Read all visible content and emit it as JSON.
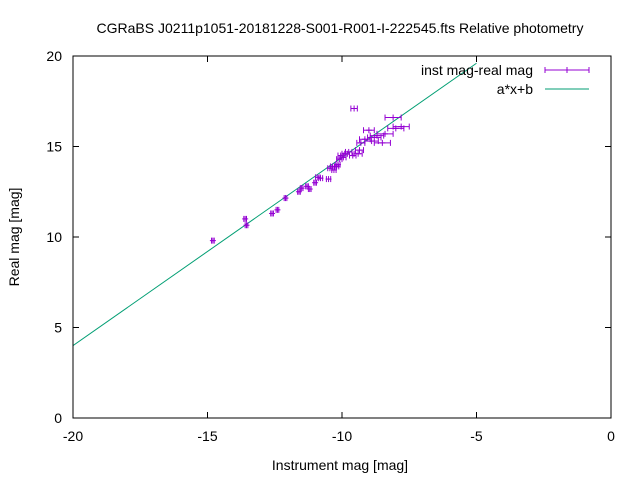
{
  "chart_data": {
    "type": "scatter",
    "title": "CGRaBS J0211p1051-20181228-S001-R001-I-222545.fts Relative photometry",
    "xlabel": "Instrument mag [mag]",
    "ylabel": "Real mag [mag]",
    "xlim": [
      -20,
      0
    ],
    "ylim": [
      0,
      20
    ],
    "xticks": [
      -20,
      -15,
      -10,
      -5,
      0
    ],
    "yticks": [
      0,
      5,
      10,
      15,
      20
    ],
    "grid": false,
    "legend_position": "top-right",
    "series": [
      {
        "name": "inst mag-real mag",
        "kind": "points-with-xerror",
        "color": "#9400d3",
        "points": [
          {
            "x": -14.8,
            "y": 9.8,
            "xerr": 0.05
          },
          {
            "x": -13.6,
            "y": 11.0,
            "xerr": 0.05
          },
          {
            "x": -13.55,
            "y": 10.65,
            "xerr": 0.05
          },
          {
            "x": -12.6,
            "y": 11.3,
            "xerr": 0.05
          },
          {
            "x": -12.4,
            "y": 11.5,
            "xerr": 0.05
          },
          {
            "x": -12.1,
            "y": 12.15,
            "xerr": 0.05
          },
          {
            "x": -11.6,
            "y": 12.5,
            "xerr": 0.05
          },
          {
            "x": -11.5,
            "y": 12.7,
            "xerr": 0.05
          },
          {
            "x": -11.3,
            "y": 12.8,
            "xerr": 0.05
          },
          {
            "x": -11.2,
            "y": 12.65,
            "xerr": 0.05
          },
          {
            "x": -11.0,
            "y": 13.0,
            "xerr": 0.05
          },
          {
            "x": -10.9,
            "y": 13.3,
            "xerr": 0.08
          },
          {
            "x": -10.8,
            "y": 13.25,
            "xerr": 0.08
          },
          {
            "x": -10.5,
            "y": 13.2,
            "xerr": 0.08
          },
          {
            "x": -10.45,
            "y": 13.8,
            "xerr": 0.08
          },
          {
            "x": -10.35,
            "y": 13.9,
            "xerr": 0.08
          },
          {
            "x": -10.3,
            "y": 13.7,
            "xerr": 0.08
          },
          {
            "x": -10.2,
            "y": 13.9,
            "xerr": 0.08
          },
          {
            "x": -10.15,
            "y": 14.0,
            "xerr": 0.08
          },
          {
            "x": -10.1,
            "y": 14.3,
            "xerr": 0.1
          },
          {
            "x": -10.05,
            "y": 14.5,
            "xerr": 0.1
          },
          {
            "x": -9.95,
            "y": 14.4,
            "xerr": 0.1
          },
          {
            "x": -9.9,
            "y": 14.6,
            "xerr": 0.1
          },
          {
            "x": -9.75,
            "y": 14.7,
            "xerr": 0.12
          },
          {
            "x": -9.6,
            "y": 14.5,
            "xerr": 0.12
          },
          {
            "x": -9.55,
            "y": 17.1,
            "xerr": 0.12
          },
          {
            "x": -9.4,
            "y": 14.6,
            "xerr": 0.15
          },
          {
            "x": -9.35,
            "y": 14.8,
            "xerr": 0.15
          },
          {
            "x": -9.3,
            "y": 15.2,
            "xerr": 0.15
          },
          {
            "x": -9.15,
            "y": 15.4,
            "xerr": 0.2
          },
          {
            "x": -9.0,
            "y": 15.9,
            "xerr": 0.2
          },
          {
            "x": -8.9,
            "y": 15.3,
            "xerr": 0.25
          },
          {
            "x": -8.8,
            "y": 15.5,
            "xerr": 0.25
          },
          {
            "x": -8.7,
            "y": 15.6,
            "xerr": 0.25
          },
          {
            "x": -8.5,
            "y": 15.2,
            "xerr": 0.3
          },
          {
            "x": -8.4,
            "y": 15.7,
            "xerr": 0.3
          },
          {
            "x": -8.1,
            "y": 16.6,
            "xerr": 0.3
          },
          {
            "x": -8.0,
            "y": 16.0,
            "xerr": 0.3
          },
          {
            "x": -7.8,
            "y": 16.1,
            "xerr": 0.3
          }
        ]
      },
      {
        "name": "a*x+b",
        "kind": "line",
        "color": "#009e73",
        "x": [
          -20,
          -5
        ],
        "y": [
          4.0,
          19.6
        ]
      }
    ]
  }
}
